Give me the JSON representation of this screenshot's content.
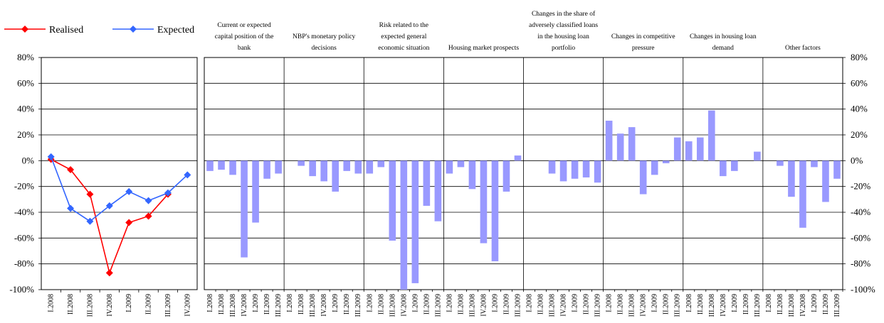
{
  "chart_data": [
    {
      "type": "line",
      "categories": [
        "I.2008",
        "II.2008",
        "III.2008",
        "IV.2008",
        "I.2009",
        "II.2009",
        "III.2009",
        "IV.2009"
      ],
      "ylim": [
        -100,
        80
      ],
      "y_ticks": [
        "80%",
        "60%",
        "40%",
        "20%",
        "0%",
        "-20%",
        "-40%",
        "-60%",
        "-80%",
        "-100%"
      ],
      "legend": "top",
      "series": [
        {
          "name": "Realised",
          "color": "#ff0000",
          "values": [
            1,
            -7,
            -26,
            -87,
            -48,
            -43,
            -26,
            null
          ]
        },
        {
          "name": "Expected",
          "color": "#3366ff",
          "values": [
            3,
            -37,
            -47,
            -35,
            -24,
            -31,
            -25,
            -11
          ]
        }
      ]
    },
    {
      "type": "bar",
      "categories": [
        "I.2008",
        "II.2008",
        "III.2008",
        "IV.2008",
        "I.2009",
        "II.2009",
        "III.2009"
      ],
      "ylim": [
        -100,
        80
      ],
      "y_ticks": [
        "80%",
        "60%",
        "40%",
        "20%",
        "0%",
        "-20%",
        "-40%",
        "-60%",
        "-80%",
        "-100%"
      ],
      "bar_color": "#9999ff",
      "panels": [
        {
          "title": [
            "Current or expected",
            "capital position of the",
            "bank"
          ],
          "values": [
            -8,
            -7,
            -11,
            -75,
            -48,
            -14,
            -10
          ]
        },
        {
          "title": [
            "NBP's monetary policy",
            "decisions"
          ],
          "values": [
            0,
            -4,
            -12,
            -16,
            -24,
            -8,
            -10
          ]
        },
        {
          "title": [
            "Risk related to the",
            "expected general",
            "economic situation"
          ],
          "values": [
            -10,
            -5,
            -62,
            -103,
            -95,
            -35,
            -47
          ]
        },
        {
          "title": [
            "Housing market prospects"
          ],
          "values": [
            -10,
            -5,
            -22,
            -64,
            -78,
            -24,
            4
          ]
        },
        {
          "title": [
            "Changes in the share of",
            "adversely classified loans",
            "in the housing loan",
            "portfolio"
          ],
          "values": [
            0,
            0,
            -10,
            -16,
            -14,
            -13,
            -17
          ]
        },
        {
          "title": [
            "Changes in competitive",
            "pressure"
          ],
          "values": [
            31,
            21,
            26,
            -26,
            -11,
            -2,
            18
          ]
        },
        {
          "title": [
            "Changes in housing loan",
            "demand"
          ],
          "values": [
            15,
            18,
            39,
            -12,
            -8,
            0,
            7
          ]
        },
        {
          "title": [
            "Other factors"
          ],
          "values": [
            0,
            -4,
            -28,
            -52,
            -5,
            -32,
            -14
          ]
        }
      ]
    }
  ]
}
